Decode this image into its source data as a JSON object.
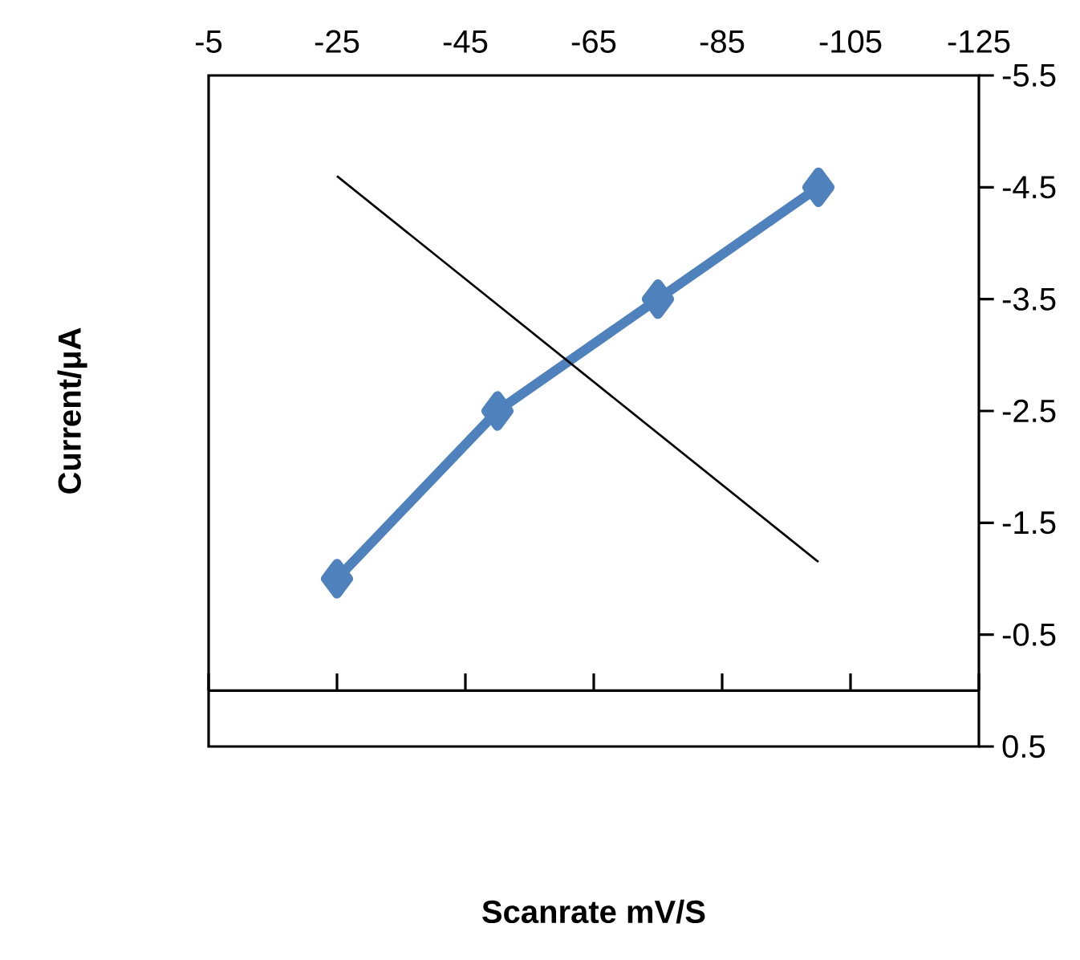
{
  "chart_data": {
    "type": "line",
    "xlabel": "Scanrate mV/S",
    "ylabel": "Current/μA",
    "xlim": [
      -5,
      -125
    ],
    "xticks": [
      -5,
      -25,
      -45,
      -65,
      -85,
      -105,
      -125
    ],
    "ylim": [
      0.5,
      -5.5
    ],
    "yticks": [
      -5.5,
      -4.5,
      -3.5,
      -2.5,
      -1.5,
      -0.5,
      0.5
    ],
    "series": [
      {
        "x": [
          -25,
          -50,
          -75,
          -100
        ],
        "values": [
          -1,
          -2.5,
          -3.5,
          -4.5
        ],
        "color": "#4f81bd",
        "marker": "diamond",
        "line_style": "solid"
      },
      {
        "x": [
          -25,
          -100
        ],
        "values": [
          -4.6,
          -1.15
        ],
        "color": "#000000",
        "marker": "none",
        "line_style": "solid"
      }
    ]
  }
}
